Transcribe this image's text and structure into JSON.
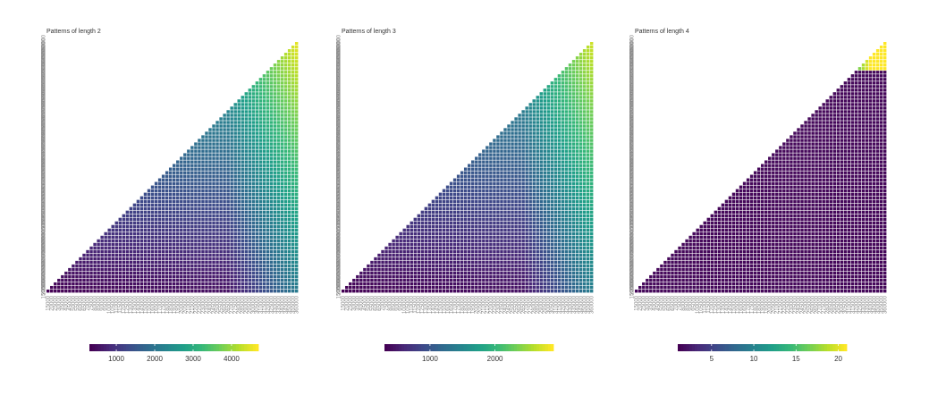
{
  "chart_data": [
    {
      "type": "heatmap",
      "title": "Patterns of length 2",
      "tick_values": [
        15000,
        20000,
        25000,
        30000,
        35000,
        40000,
        45000,
        50000,
        55000,
        60000,
        65000,
        70000,
        75000,
        80000,
        85000,
        90000,
        95000,
        100000,
        105000,
        110000,
        115000,
        120000,
        125000,
        130000,
        135000,
        140000,
        145000,
        150000,
        155000,
        160000,
        165000,
        170000,
        175000,
        180000,
        185000,
        190000,
        195000,
        200000,
        205000,
        210000,
        215000,
        220000,
        225000,
        230000,
        235000,
        240000,
        245000,
        250000,
        255000,
        260000,
        265000,
        270000,
        275000,
        280000,
        285000,
        290000,
        295000,
        300000,
        305000,
        310000,
        315000,
        320000,
        325000,
        330000,
        335000,
        340000,
        345000,
        350000,
        355000,
        360000
      ],
      "value_range": [
        300,
        4700
      ],
      "colorbar_ticks": [
        1000,
        2000,
        3000,
        4000
      ],
      "colorscale": "viridis",
      "legend_position": "bottom"
    },
    {
      "type": "heatmap",
      "title": "Patterns of length 3",
      "tick_values": [
        15000,
        20000,
        25000,
        30000,
        35000,
        40000,
        45000,
        50000,
        55000,
        60000,
        65000,
        70000,
        75000,
        80000,
        85000,
        90000,
        95000,
        100000,
        105000,
        110000,
        115000,
        120000,
        125000,
        130000,
        135000,
        140000,
        145000,
        150000,
        155000,
        160000,
        165000,
        170000,
        175000,
        180000,
        185000,
        190000,
        195000,
        200000,
        205000,
        210000,
        215000,
        220000,
        225000,
        230000,
        235000,
        240000,
        245000,
        250000,
        255000,
        260000,
        265000,
        270000,
        275000,
        280000,
        285000,
        290000,
        295000,
        300000,
        305000,
        310000,
        315000,
        320000,
        325000,
        330000,
        335000,
        340000,
        345000,
        350000,
        355000,
        360000
      ],
      "value_range": [
        300,
        2900
      ],
      "colorbar_ticks": [
        1000,
        2000
      ],
      "colorscale": "viridis",
      "legend_position": "bottom"
    },
    {
      "type": "heatmap",
      "title": "Patterns of length 4",
      "tick_values": [
        15000,
        20000,
        25000,
        30000,
        35000,
        40000,
        45000,
        50000,
        55000,
        60000,
        65000,
        70000,
        75000,
        80000,
        85000,
        90000,
        95000,
        100000,
        105000,
        110000,
        115000,
        120000,
        125000,
        130000,
        135000,
        140000,
        145000,
        150000,
        155000,
        160000,
        165000,
        170000,
        175000,
        180000,
        185000,
        190000,
        195000,
        200000,
        205000,
        210000,
        215000,
        220000,
        225000,
        230000,
        235000,
        240000,
        245000,
        250000,
        255000,
        260000,
        265000,
        270000,
        275000,
        280000,
        285000,
        290000,
        295000,
        300000,
        305000,
        310000,
        315000,
        320000,
        325000,
        330000,
        335000,
        340000,
        345000,
        350000,
        355000,
        360000
      ],
      "value_range": [
        1,
        21
      ],
      "colorbar_ticks": [
        5,
        10,
        15,
        20
      ],
      "colorscale": "viridis",
      "legend_position": "bottom"
    }
  ]
}
